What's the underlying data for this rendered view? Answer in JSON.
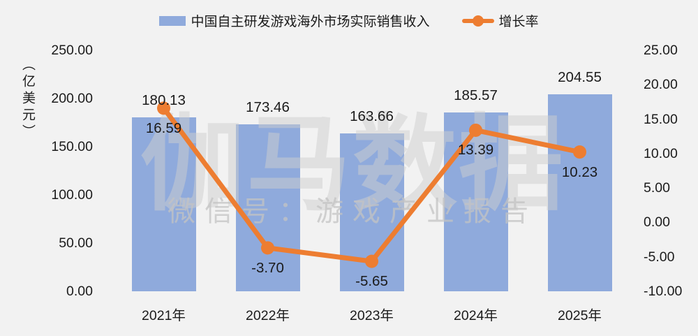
{
  "legend": {
    "bar_label": "中国自主研发游戏海外市场实际销售收入",
    "line_label": "增长率"
  },
  "watermark": {
    "brand": "伽马数据",
    "subtitle": "微信号：游戏产业报告"
  },
  "colors": {
    "background": "#F2F2F2",
    "bar": "#8FAADC",
    "line": "#ED7D31",
    "text": "#1B1B1B"
  },
  "chart_data": {
    "type": "bar",
    "subtype": "bar-line-combo",
    "categories": [
      "2021年",
      "2022年",
      "2023年",
      "2024年",
      "2025年"
    ],
    "series": [
      {
        "name": "中国自主研发游戏海外市场实际销售收入",
        "type": "bar",
        "axis": "left",
        "color": "#8FAADC",
        "values": [
          180.13,
          173.46,
          163.66,
          185.57,
          204.55
        ],
        "labels": [
          "180.13",
          "173.46",
          "163.66",
          "185.57",
          "204.55"
        ]
      },
      {
        "name": "增长率",
        "type": "line",
        "axis": "right",
        "color": "#ED7D31",
        "values": [
          16.59,
          -3.7,
          -5.65,
          13.39,
          10.23
        ],
        "labels": [
          "16.59",
          "-3.70",
          "-5.65",
          "13.39",
          "10.23"
        ]
      }
    ],
    "left_axis": {
      "unit": "（亿美元）",
      "min": 0,
      "max": 250,
      "tick_labels": [
        "250.00",
        "200.00",
        "150.00",
        "100.00",
        "50.00",
        "0.00"
      ]
    },
    "right_axis": {
      "min": -10,
      "max": 25,
      "tick_labels": [
        "25.00",
        "20.00",
        "15.00",
        "10.00",
        "5.00",
        "0.00",
        "-5.00",
        "-10.00"
      ]
    },
    "legend_position": "top",
    "grid": false
  }
}
